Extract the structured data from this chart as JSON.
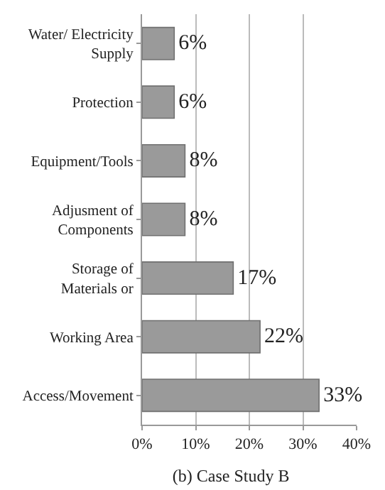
{
  "chart_data": {
    "type": "bar",
    "orientation": "horizontal",
    "title": "(b) Case Study B",
    "categories": [
      "Water/ Electricity\nSupply",
      "Protection",
      "Equipment/Tools",
      "Adjusment of\nComponents",
      "Storage of\nMaterials or",
      "Working Area",
      "Access/Movement"
    ],
    "values": [
      6,
      6,
      8,
      8,
      17,
      22,
      33
    ],
    "value_labels": [
      "6%",
      "6%",
      "8%",
      "8%",
      "17%",
      "22%",
      "33%"
    ],
    "color": "#9a9a9a",
    "xlim": [
      0,
      40
    ],
    "xticks": [
      {
        "value": 0,
        "label": "0%"
      },
      {
        "value": 10,
        "label": "10%"
      },
      {
        "value": 20,
        "label": "20%"
      },
      {
        "value": 30,
        "label": "30%"
      },
      {
        "value": 40,
        "label": "40%"
      }
    ],
    "grid": "x",
    "legend": false
  }
}
